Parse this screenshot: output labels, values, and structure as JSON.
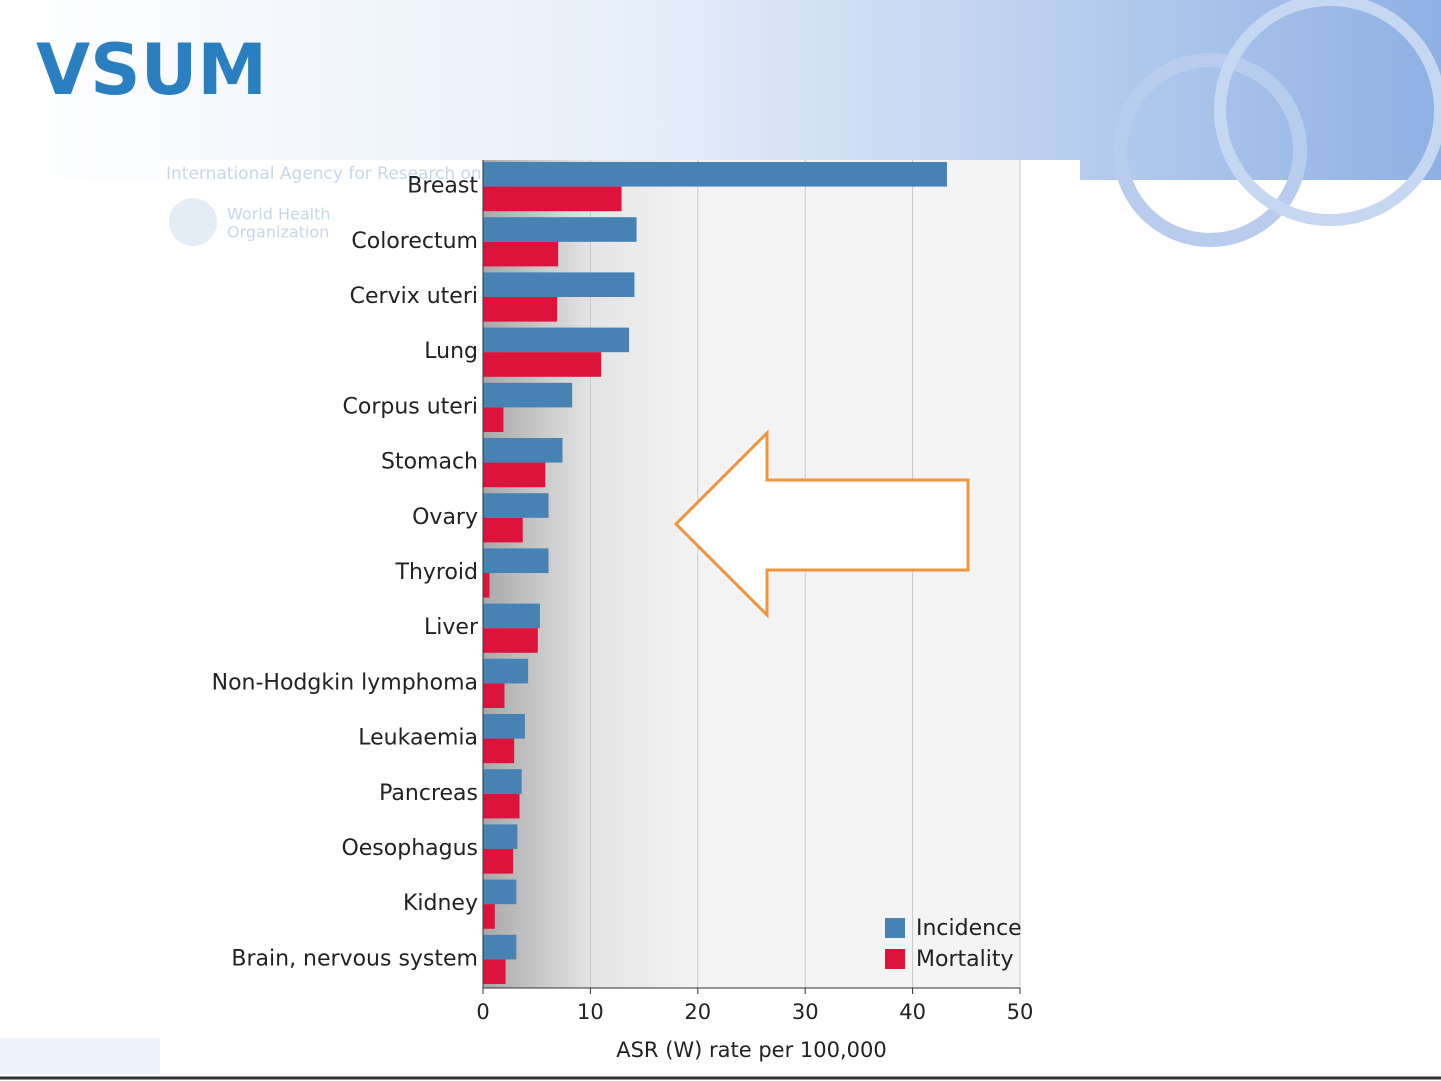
{
  "header": {
    "logo": "VSUM",
    "agency": "International Agency for Research on",
    "who": [
      "World Health",
      "Organization"
    ]
  },
  "chart_data": {
    "type": "bar",
    "orientation": "horizontal",
    "x_label": "ASR (W) rate per 100,000",
    "categories": [
      "Breast",
      "Colorectum",
      "Cervix uteri",
      "Lung",
      "Corpus uteri",
      "Stomach",
      "Ovary",
      "Thyroid",
      "Liver",
      "Non-Hodgkin lymphoma",
      "Leukaemia",
      "Pancreas",
      "Oesophagus",
      "Kidney",
      "Brain, nervous system"
    ],
    "series": [
      {
        "name": "Incidence",
        "color": "#4682b4",
        "values": [
          43.2,
          14.3,
          14.1,
          13.6,
          8.3,
          7.4,
          6.1,
          6.1,
          5.3,
          4.2,
          3.9,
          3.6,
          3.2,
          3.1,
          3.1
        ]
      },
      {
        "name": "Mortality",
        "color": "#dc143c",
        "values": [
          12.9,
          7.0,
          6.9,
          11.0,
          1.9,
          5.8,
          3.7,
          0.6,
          5.1,
          2.0,
          2.9,
          3.4,
          2.8,
          1.1,
          2.1
        ]
      }
    ],
    "xlim": [
      0,
      50
    ],
    "xticks": [
      0,
      10,
      20,
      30,
      40,
      50
    ],
    "grid": true,
    "legend": "bottom-right"
  }
}
